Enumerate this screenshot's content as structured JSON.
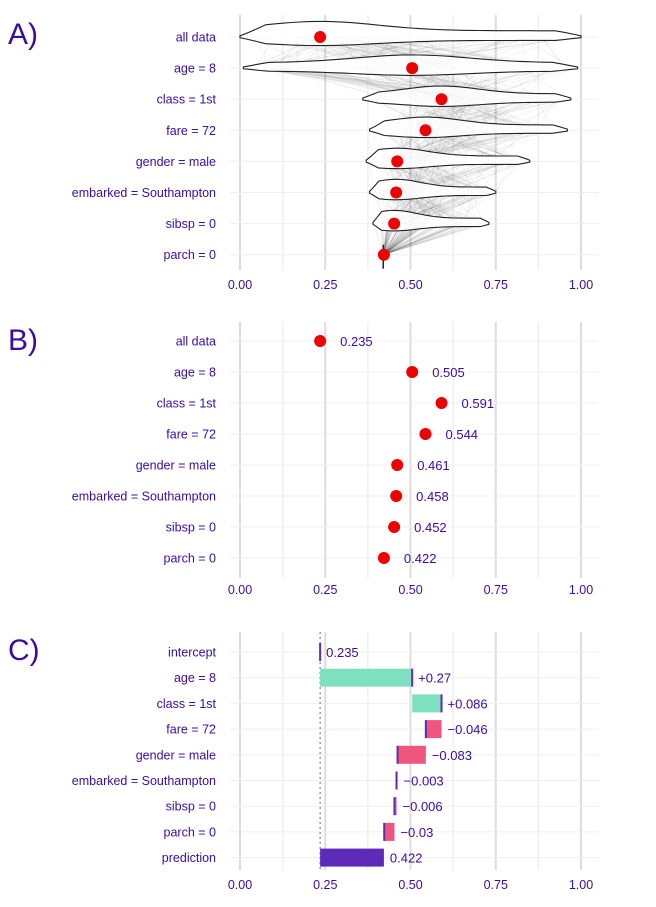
{
  "chart_data": [
    {
      "panel": "A)",
      "type": "violin",
      "rows": [
        "all data",
        "age = 8",
        "class = 1st",
        "fare = 72",
        "gender = male",
        "embarked = Southampton",
        "sibsp = 0",
        "parch = 0"
      ],
      "values": [
        0.235,
        0.505,
        0.591,
        0.544,
        0.461,
        0.458,
        0.452,
        0.422
      ],
      "ranges": [
        [
          0.0,
          1.0
        ],
        [
          0.01,
          0.99
        ],
        [
          0.36,
          0.97
        ],
        [
          0.38,
          0.96
        ],
        [
          0.37,
          0.85
        ],
        [
          0.38,
          0.75
        ],
        [
          0.39,
          0.73
        ],
        [
          0.42,
          0.42
        ]
      ],
      "xlim": [
        0,
        1
      ],
      "xticks": [
        "0.00",
        "0.25",
        "0.50",
        "0.75",
        "1.00"
      ],
      "grid": true
    },
    {
      "panel": "B)",
      "type": "scatter",
      "rows": [
        "all data",
        "age = 8",
        "class = 1st",
        "fare = 72",
        "gender = male",
        "embarked = Southampton",
        "sibsp = 0",
        "parch = 0"
      ],
      "values": [
        0.235,
        0.505,
        0.591,
        0.544,
        0.461,
        0.458,
        0.452,
        0.422
      ],
      "labels": [
        "0.235",
        "0.505",
        "0.591",
        "0.544",
        "0.461",
        "0.458",
        "0.452",
        "0.422"
      ],
      "xlim": [
        0,
        1
      ],
      "xticks": [
        "0.00",
        "0.25",
        "0.50",
        "0.75",
        "1.00"
      ],
      "grid": true
    },
    {
      "panel": "C)",
      "type": "bar",
      "subtype": "waterfall",
      "rows": [
        "intercept",
        "age = 8",
        "class = 1st",
        "fare = 72",
        "gender = male",
        "embarked = Southampton",
        "sibsp = 0",
        "parch = 0",
        "prediction"
      ],
      "contributions": [
        0.235,
        0.27,
        0.086,
        -0.046,
        -0.083,
        -0.003,
        -0.006,
        -0.03,
        0.422
      ],
      "labels": [
        "0.235",
        "+0.27",
        "+0.086",
        "−0.046",
        "−0.083",
        "−0.003",
        "−0.006",
        "−0.03",
        "0.422"
      ],
      "baseline": 0.235,
      "xlim": [
        0,
        1
      ],
      "xticks": [
        "0.00",
        "0.25",
        "0.50",
        "0.75",
        "1.00"
      ],
      "grid": true
    }
  ],
  "colors": {
    "text": "#3a0ca3",
    "point": "#ee0000",
    "positive": "#7fe0bf",
    "negative": "#f0557b",
    "prediction": "#5d2bb8",
    "baseline_line": "#8a7fd0",
    "grid_major": "#dcdcdc",
    "grid_minor": "#efefef"
  }
}
